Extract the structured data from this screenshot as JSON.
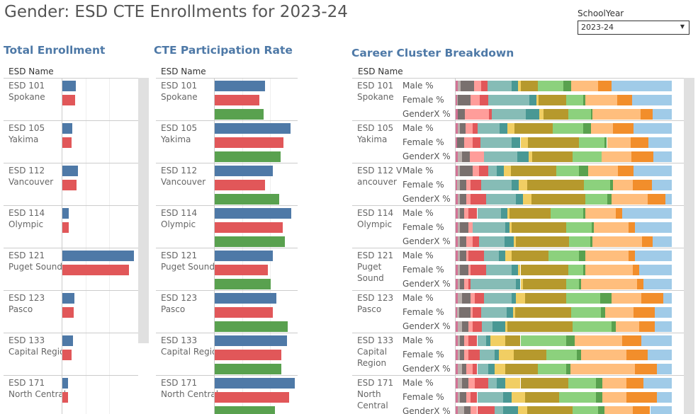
{
  "title": "Gender: ESD CTE Enrollments for 2023-24",
  "filter": {
    "label": "SchoolYear",
    "value": "2023-24"
  },
  "sections": {
    "total": "Total Enrollment",
    "cte": "CTE Participation Rate",
    "cluster": "Career Cluster Breakdown"
  },
  "column_header": "ESD Name",
  "gender_labels": [
    "Male %",
    "Female %",
    "GenderX %"
  ],
  "colors": {
    "male": "#4e79a7",
    "female": "#e15759",
    "genderx": "#59a14f",
    "clusters": [
      "#d37295",
      "#bab0ac",
      "#79706e",
      "#ff9d9a",
      "#e15759",
      "#86bcb6",
      "#499894",
      "#f1ce63",
      "#b6992d",
      "#8cd17d",
      "#59a14f",
      "#ffbe7d",
      "#f28e2b",
      "#a0cbe8"
    ]
  },
  "chart_data": [
    {
      "type": "bar",
      "title": "Total Enrollment",
      "note_units": "relative",
      "categories": [
        "ESD 101 Spokane",
        "ESD 105 Yakima",
        "ESD 112 Vancouver",
        "ESD 114 Olympic",
        "ESD 121 Puget Sound",
        "ESD 123 Pasco",
        "ESD 133 Capital Region",
        "ESD 171 North Central"
      ],
      "series": [
        {
          "name": "Male",
          "values": [
            0.2,
            0.15,
            0.23,
            0.1,
            1.0,
            0.18,
            0.16,
            0.09
          ]
        },
        {
          "name": "Female",
          "values": [
            0.19,
            0.14,
            0.21,
            0.1,
            0.93,
            0.17,
            0.14,
            0.09
          ]
        }
      ]
    },
    {
      "type": "bar",
      "title": "CTE Participation Rate",
      "categories": [
        "ESD 101 Spokane",
        "ESD 105 Yakima",
        "ESD 112 Vancouver",
        "ESD 114 Olympic",
        "ESD 121 Puget Sound",
        "ESD 123 Pasco",
        "ESD 133 Capital Region",
        "ESD 171 North Central"
      ],
      "series": [
        {
          "name": "Male",
          "values": [
            0.6,
            0.9,
            0.69,
            0.91,
            0.69,
            0.73,
            0.86,
            0.95
          ]
        },
        {
          "name": "Female",
          "values": [
            0.53,
            0.82,
            0.6,
            0.81,
            0.63,
            0.69,
            0.79,
            0.88
          ]
        },
        {
          "name": "GenderX",
          "values": [
            0.58,
            0.78,
            0.77,
            0.83,
            0.67,
            0.87,
            0.79,
            0.72
          ]
        }
      ]
    },
    {
      "type": "bar",
      "stacked": true,
      "percent": true,
      "title": "Career Cluster Breakdown",
      "categories": [
        "ESD 101 Spokane",
        "ESD 105 Yakima",
        "ESD 112 Vancouver",
        "ESD 114 Olympic",
        "ESD 121 Puget Sound",
        "ESD 123 Pasco",
        "ESD 133 Capital Region",
        "ESD 171 North Central"
      ],
      "rows": [
        [
          [
            1,
            1.3,
            6.2,
            3.3,
            3,
            11,
            3,
            1.3,
            7.9,
            11.8,
            3.6,
            12.5,
            6.2,
            28
          ],
          [
            0.8,
            0.2,
            6,
            4,
            4,
            19,
            3.3,
            1,
            12.8,
            8,
            1,
            14.7,
            6.9,
            18.3
          ],
          [
            1,
            0,
            3.3,
            11,
            1.3,
            15.8,
            6.2,
            2,
            11.5,
            10.5,
            0.7,
            22.3,
            5.6,
            8.8
          ]
        ],
        [
          [
            1,
            1,
            2.6,
            3.3,
            2.3,
            10,
            3.6,
            3.3,
            17.7,
            14.1,
            3.6,
            10,
            9.5,
            17.7
          ],
          [
            0.7,
            0,
            3.3,
            4,
            3.6,
            14.4,
            4,
            3.3,
            23.6,
            11.8,
            1.3,
            11.1,
            8.2,
            10.7
          ],
          [
            1,
            2,
            3.6,
            6.6,
            0,
            15.4,
            5.2,
            1.6,
            18.7,
            13.4,
            0,
            13.8,
            10.2,
            8.5
          ]
        ],
        [
          [
            1,
            1,
            5.6,
            2.6,
            4,
            4,
            3,
            3,
            20,
            10,
            4,
            13,
            7,
            16.8
          ],
          [
            0.8,
            1,
            3,
            2,
            5,
            14,
            3,
            4,
            26,
            12,
            1.3,
            9,
            9,
            9
          ],
          [
            1,
            1,
            3,
            2,
            7,
            14,
            3,
            4,
            25,
            10,
            2,
            17,
            8,
            3
          ]
        ],
        [
          [
            1,
            1,
            2,
            2,
            4,
            11,
            3,
            1,
            19,
            15,
            1,
            14,
            3,
            23
          ],
          [
            1,
            1,
            4,
            2,
            0,
            15,
            2,
            1,
            25,
            12,
            1,
            16,
            3,
            17
          ],
          [
            1,
            1,
            3,
            3,
            3,
            12,
            4,
            1,
            25,
            10,
            1,
            23,
            5,
            9
          ]
        ],
        [
          [
            1,
            1,
            3,
            1,
            7,
            7,
            3,
            3,
            17,
            14,
            3,
            20,
            3,
            17
          ],
          [
            1,
            1,
            4,
            1,
            7,
            12,
            3,
            1,
            22,
            7,
            1,
            22,
            3,
            15
          ],
          [
            1,
            1,
            2,
            2,
            1,
            21,
            2,
            1,
            20,
            6,
            1,
            26,
            3,
            13
          ]
        ],
        [
          [
            1,
            2,
            4,
            2,
            4,
            13,
            2,
            4,
            19,
            16,
            5,
            14,
            10,
            4
          ],
          [
            0.8,
            1,
            5,
            1,
            4,
            12,
            3,
            1,
            26,
            14,
            2,
            13,
            10,
            8
          ],
          [
            1,
            2,
            3,
            2,
            4,
            5,
            6,
            1,
            30,
            18,
            2,
            11,
            7,
            8
          ]
        ],
        [
          [
            1,
            1,
            2,
            2,
            4,
            4,
            2,
            7,
            7,
            21,
            4,
            22,
            9,
            14
          ],
          [
            1,
            1,
            2,
            2,
            5,
            7,
            2,
            7,
            15,
            14,
            2,
            21,
            10,
            11
          ],
          [
            1,
            2,
            2,
            3,
            2,
            5,
            3,
            5,
            15,
            13,
            2,
            30,
            10,
            7
          ]
        ],
        [
          [
            1,
            2,
            3,
            3,
            6,
            4,
            4,
            7,
            22,
            13,
            3,
            11,
            8,
            13
          ],
          [
            1,
            1,
            3,
            2,
            3,
            12,
            4,
            6,
            16,
            17,
            3,
            11,
            14,
            7
          ],
          [
            1,
            3,
            3,
            3,
            8,
            4,
            7,
            4,
            21,
            12,
            3,
            13,
            8,
            10
          ]
        ]
      ]
    }
  ]
}
